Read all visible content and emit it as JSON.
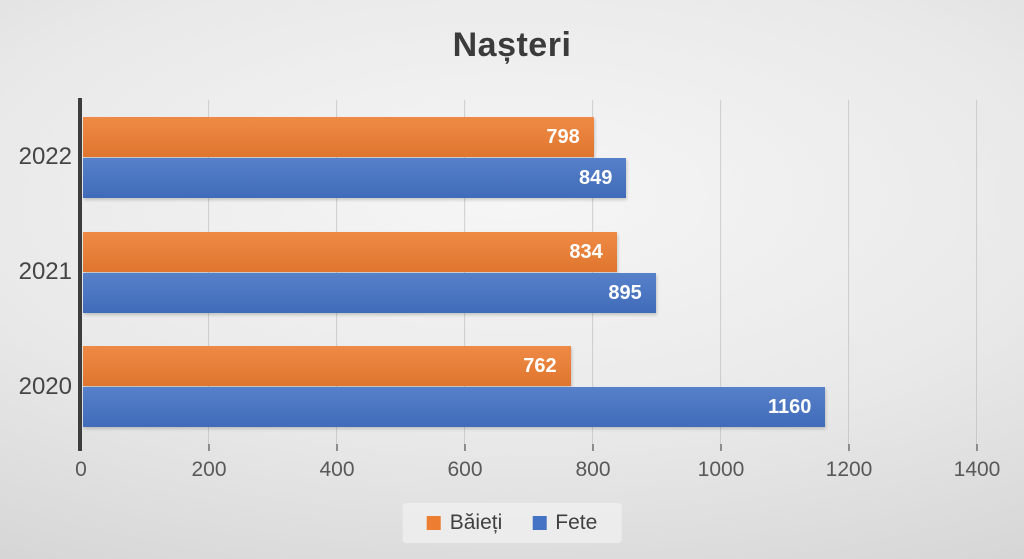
{
  "chart_data": {
    "type": "bar",
    "orientation": "horizontal",
    "title": "Nașteri",
    "categories": [
      "2022",
      "2021",
      "2020"
    ],
    "series": [
      {
        "name": "Băieți",
        "color": "#ED7D31",
        "values": [
          798,
          834,
          762
        ]
      },
      {
        "name": "Fete",
        "color": "#4472C4",
        "values": [
          849,
          895,
          1160
        ]
      }
    ],
    "xlim": [
      0,
      1400
    ],
    "x_ticks": [
      0,
      200,
      400,
      600,
      800,
      1000,
      1200,
      1400
    ],
    "grid": "vertical-gridlines",
    "legend_position": "bottom-center",
    "value_labels": "inside-end-white-bold",
    "background": "light-gray-gradient",
    "axis_color": "#3d3d3d",
    "tick_label_color": "#595959"
  }
}
